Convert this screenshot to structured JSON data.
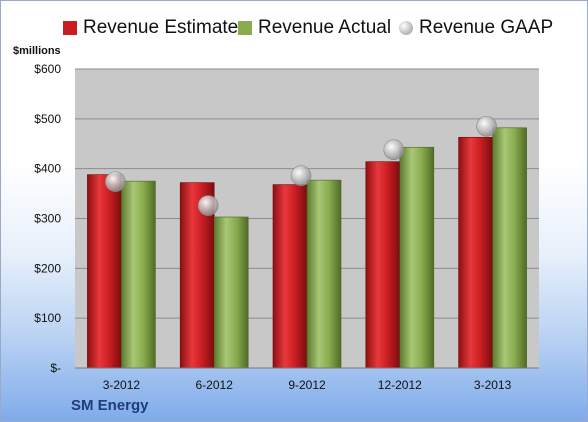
{
  "chart_data": {
    "type": "bar",
    "categories": [
      "3-2012",
      "6-2012",
      "9-2012",
      "12-2012",
      "3-2013"
    ],
    "series": [
      {
        "name": "Revenue Estimate",
        "kind": "bar",
        "color": "#c81e22",
        "values": [
          388,
          372,
          368,
          414,
          463
        ]
      },
      {
        "name": "Revenue Actual",
        "kind": "bar",
        "color": "#8aab4e",
        "values": [
          375,
          303,
          377,
          443,
          482
        ]
      },
      {
        "name": "Revenue GAAP",
        "kind": "marker",
        "color": "#bfbfbf",
        "values": [
          374,
          326,
          386,
          438,
          485
        ]
      }
    ],
    "ylabel": "$millions",
    "ylim": [
      0,
      600
    ],
    "yticks": [
      0,
      100,
      200,
      300,
      400,
      500,
      600
    ],
    "ytick_labels": [
      "$-",
      "$100",
      "$200",
      "$300",
      "$400",
      "$500",
      "$600"
    ],
    "grid": true,
    "legend_position": "top"
  },
  "company": "SM Energy",
  "colors": {
    "plot_background": "#c8c8c8",
    "gridline": "#8c8c8c"
  }
}
